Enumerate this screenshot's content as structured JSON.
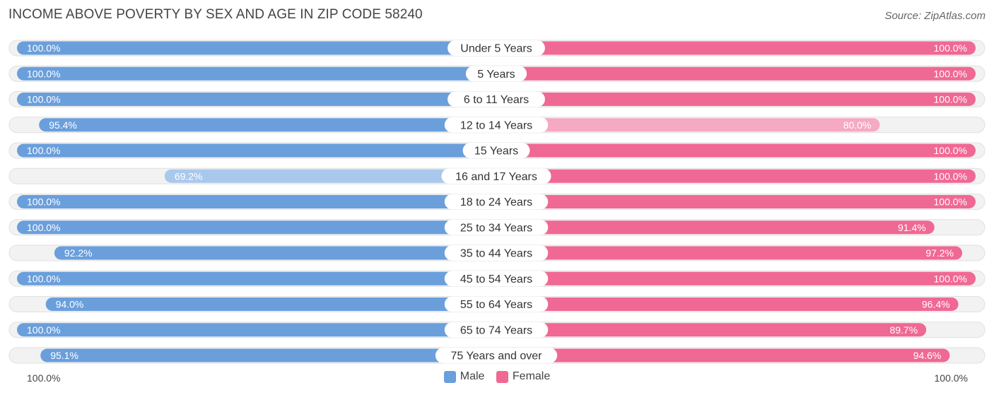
{
  "header": {
    "title": "INCOME ABOVE POVERTY BY SEX AND AGE IN ZIP CODE 58240",
    "source": "Source: ZipAtlas.com"
  },
  "colors": {
    "male_strong": "#6a9fdc",
    "male_light": "#a9c8ec",
    "female_strong": "#f06894",
    "female_light": "#f6a9c2"
  },
  "legend": {
    "male": "Male",
    "female": "Female"
  },
  "axis": {
    "left_label": "100.0%",
    "right_label": "100.0%"
  },
  "chart_data": {
    "type": "bar",
    "orientation": "horizontal-diverging",
    "title": "INCOME ABOVE POVERTY BY SEX AND AGE IN ZIP CODE 58240",
    "categories": [
      "Under 5 Years",
      "5 Years",
      "6 to 11 Years",
      "12 to 14 Years",
      "15 Years",
      "16 and 17 Years",
      "18 to 24 Years",
      "25 to 34 Years",
      "35 to 44 Years",
      "45 to 54 Years",
      "55 to 64 Years",
      "65 to 74 Years",
      "75 Years and over"
    ],
    "series": [
      {
        "name": "Male",
        "values": [
          100.0,
          100.0,
          100.0,
          95.4,
          100.0,
          69.2,
          100.0,
          100.0,
          92.2,
          100.0,
          94.0,
          100.0,
          95.1
        ],
        "labels": [
          "100.0%",
          "100.0%",
          "100.0%",
          "95.4%",
          "100.0%",
          "69.2%",
          "100.0%",
          "100.0%",
          "92.2%",
          "100.0%",
          "94.0%",
          "100.0%",
          "95.1%"
        ]
      },
      {
        "name": "Female",
        "values": [
          100.0,
          100.0,
          100.0,
          80.0,
          100.0,
          100.0,
          100.0,
          91.4,
          97.2,
          100.0,
          96.4,
          89.7,
          94.6
        ],
        "labels": [
          "100.0%",
          "100.0%",
          "100.0%",
          "80.0%",
          "100.0%",
          "100.0%",
          "100.0%",
          "91.4%",
          "97.2%",
          "100.0%",
          "96.4%",
          "89.7%",
          "94.6%"
        ]
      }
    ],
    "xlim": [
      0,
      100
    ],
    "unit": "%"
  }
}
